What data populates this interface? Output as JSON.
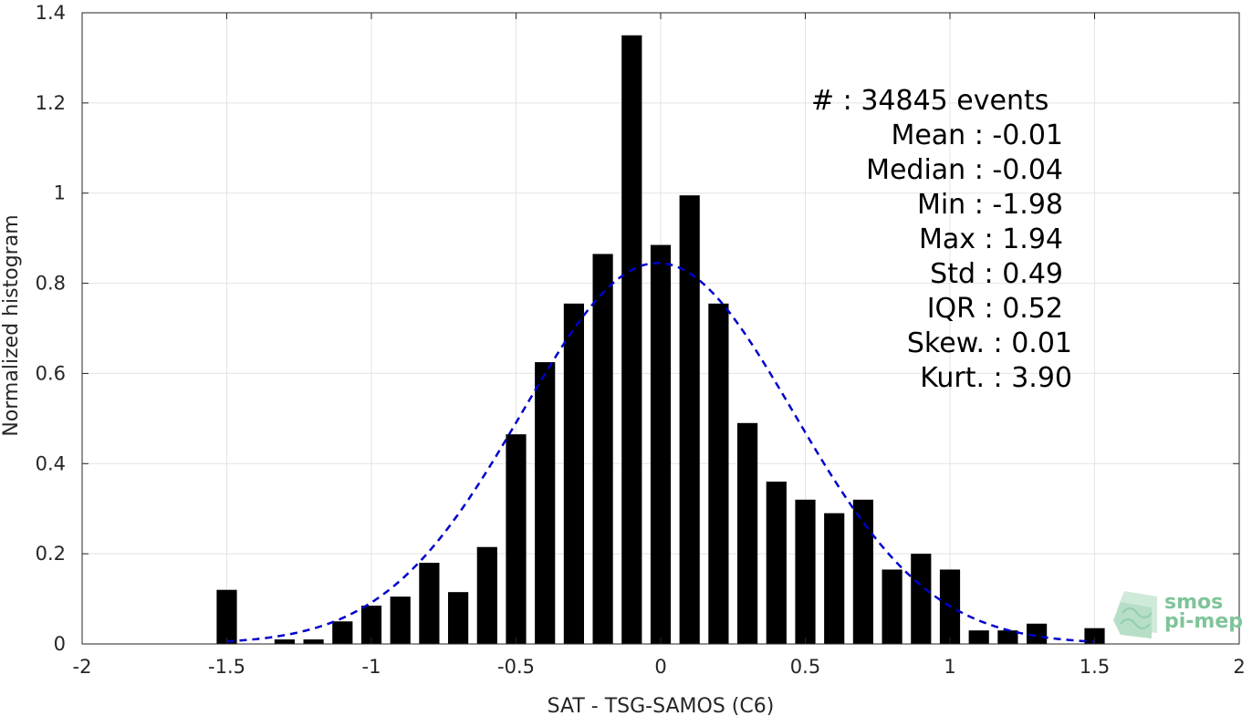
{
  "chart_data": {
    "type": "bar",
    "xlabel": "SAT - TSG-SAMOS (C6)",
    "ylabel": "Normalized histogram",
    "xlim": [
      -2,
      2
    ],
    "ylim": [
      0,
      1.4
    ],
    "xticks": [
      -2,
      -1.5,
      -1,
      -0.5,
      0,
      0.5,
      1,
      1.5,
      2
    ],
    "xtick_labels": [
      "-2",
      "-1.5",
      "-1",
      "-0.5",
      "0",
      "0.5",
      "1",
      "1.5",
      "2"
    ],
    "yticks": [
      0,
      0.2,
      0.4,
      0.6,
      0.8,
      1,
      1.2,
      1.4
    ],
    "ytick_labels": [
      "0",
      "0.2",
      "0.4",
      "0.6",
      "0.8",
      "1",
      "1.2",
      "1.4"
    ],
    "grid": true,
    "bar_width": 0.07,
    "bar_color": "#000000",
    "series": [
      {
        "x": [
          -1.5,
          -1.3,
          -1.2,
          -1.1,
          -1.0,
          -0.9,
          -0.8,
          -0.7,
          -0.6,
          -0.5,
          -0.4,
          -0.3,
          -0.2,
          -0.1,
          0.0,
          0.1,
          0.2,
          0.3,
          0.4,
          0.5,
          0.6,
          0.7,
          0.8,
          0.9,
          1.0,
          1.1,
          1.2,
          1.3,
          1.5
        ],
        "values": [
          0.12,
          0.01,
          0.01,
          0.05,
          0.085,
          0.105,
          0.18,
          0.115,
          0.215,
          0.465,
          0.625,
          0.755,
          0.865,
          1.35,
          0.885,
          0.995,
          0.755,
          0.49,
          0.36,
          0.32,
          0.29,
          0.32,
          0.165,
          0.2,
          0.165,
          0.03,
          0.03,
          0.045,
          0.035
        ]
      }
    ],
    "fit_curve": {
      "type": "gaussian",
      "mean": -0.01,
      "std": 0.47,
      "peak": 0.845,
      "x_range": [
        -1.5,
        1.5
      ],
      "color": "#0000cc",
      "style": "dashed"
    },
    "stats": {
      "lines": [
        "#  : 34845 events",
        "Mean : -0.01",
        "Median : -0.04",
        "Min : -1.98",
        "Max : 1.94",
        "Std : 0.49",
        "IQR : 0.52",
        "Skew. : 0.01",
        "Kurt. : 3.90"
      ]
    }
  },
  "logo": {
    "line1": "smos",
    "line2": "pi-mep",
    "color": "#7fc49a"
  }
}
